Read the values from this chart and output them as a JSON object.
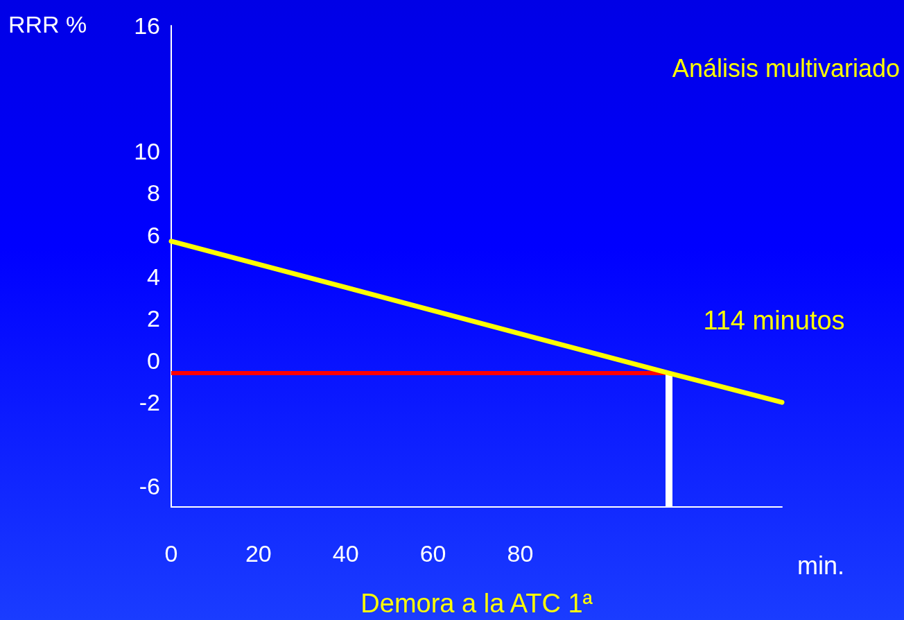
{
  "chart_data": {
    "type": "line",
    "xlabel": "Demora a la ATC 1ª",
    "ylabel": "RRR %",
    "x": [
      0,
      114,
      140
    ],
    "series": [
      {
        "color": "#ffff00",
        "values": [
          5.7,
          -0.6,
          -2.0
        ]
      }
    ],
    "xlim": [
      0,
      140
    ],
    "xticks": [
      0,
      20,
      40,
      60,
      80
    ],
    "ylim": [
      -7,
      16
    ],
    "yticks": [
      -6,
      -2,
      0,
      2,
      4,
      6,
      8,
      10,
      16
    ],
    "ref_lines": [
      {
        "axis": "y",
        "value": -0.6,
        "color": "#ff0000"
      },
      {
        "axis": "x",
        "value": 114,
        "color": "#ffffff"
      }
    ],
    "annotations": [
      "Análisis multivariado",
      "min.",
      {
        "text": "114 minutos",
        "x": 114,
        "y": -0.6
      }
    ],
    "grid": false,
    "marker": "none",
    "line_style": "solid"
  }
}
